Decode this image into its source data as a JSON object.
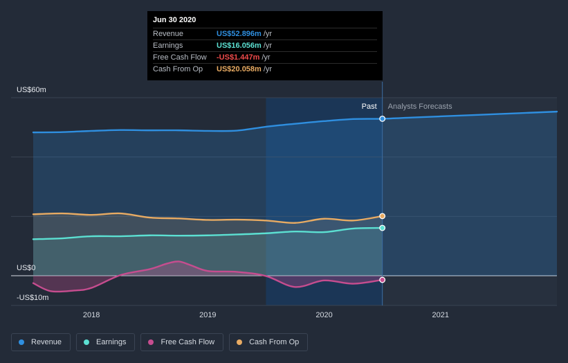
{
  "tooltip": {
    "date": "Jun 30 2020",
    "rows": [
      {
        "label": "Revenue",
        "value": "US$52.896m",
        "unit": "/yr",
        "color": "#2f8fe0"
      },
      {
        "label": "Earnings",
        "value": "US$16.056m",
        "unit": "/yr",
        "color": "#5ce0d2"
      },
      {
        "label": "Free Cash Flow",
        "value": "-US$1.447m",
        "unit": "/yr",
        "color": "#f04b4b"
      },
      {
        "label": "Cash From Op",
        "value": "US$20.058m",
        "unit": "/yr",
        "color": "#e8ab63"
      }
    ]
  },
  "regions": {
    "past": "Past",
    "forecast": "Analysts Forecasts"
  },
  "legend": [
    {
      "label": "Revenue",
      "color": "#2f8fe0"
    },
    {
      "label": "Earnings",
      "color": "#5ce0d2"
    },
    {
      "label": "Free Cash Flow",
      "color": "#c64d8f"
    },
    {
      "label": "Cash From Op",
      "color": "#e8ab63"
    }
  ],
  "chart_data": {
    "type": "line",
    "y_tick_labels": [
      "US$60m",
      "US$0",
      "-US$10m"
    ],
    "ylim": [
      -10,
      60
    ],
    "x_tick_labels": [
      "2018",
      "2019",
      "2020",
      "2021"
    ],
    "x_ticks": [
      2018.0,
      2019.0,
      2020.0,
      2021.0
    ],
    "xlim": [
      2017.5,
      2022.0
    ],
    "past_end": 2020.5,
    "series": [
      {
        "name": "Revenue",
        "color": "#2f8fe0",
        "x": [
          2017.5,
          2017.75,
          2018.0,
          2018.25,
          2018.5,
          2018.75,
          2019.0,
          2019.25,
          2019.5,
          2019.75,
          2020.0,
          2020.25,
          2020.5,
          2020.75,
          2021.0,
          2021.5,
          2022.0
        ],
        "y": [
          48.3,
          48.4,
          48.8,
          49.1,
          49.0,
          49.0,
          48.8,
          48.9,
          50.2,
          51.2,
          52.1,
          52.8,
          52.9,
          53.3,
          53.7,
          54.5,
          55.3
        ]
      },
      {
        "name": "Earnings",
        "color": "#5ce0d2",
        "x": [
          2017.5,
          2017.75,
          2018.0,
          2018.25,
          2018.5,
          2018.75,
          2019.0,
          2019.25,
          2019.5,
          2019.75,
          2020.0,
          2020.25,
          2020.5
        ],
        "y": [
          12.3,
          12.6,
          13.3,
          13.3,
          13.6,
          13.5,
          13.6,
          13.9,
          14.3,
          14.9,
          14.7,
          15.9,
          16.1
        ]
      },
      {
        "name": "Free Cash Flow",
        "color": "#c64d8f",
        "x": [
          2017.5,
          2017.65,
          2017.85,
          2018.0,
          2018.25,
          2018.5,
          2018.65,
          2018.75,
          2018.85,
          2019.0,
          2019.25,
          2019.5,
          2019.75,
          2020.0,
          2020.25,
          2020.5
        ],
        "y": [
          -2.5,
          -5.2,
          -5.0,
          -4.1,
          0.2,
          2.2,
          4.1,
          4.8,
          3.6,
          1.6,
          1.3,
          -0.1,
          -3.8,
          -1.6,
          -2.7,
          -1.4
        ]
      },
      {
        "name": "Cash From Op",
        "color": "#e8ab63",
        "x": [
          2017.5,
          2017.75,
          2018.0,
          2018.25,
          2018.5,
          2018.75,
          2019.0,
          2019.25,
          2019.5,
          2019.75,
          2020.0,
          2020.25,
          2020.5
        ],
        "y": [
          20.7,
          21.0,
          20.5,
          21.0,
          19.6,
          19.3,
          18.8,
          18.9,
          18.6,
          17.8,
          19.2,
          18.6,
          20.1
        ]
      }
    ]
  }
}
